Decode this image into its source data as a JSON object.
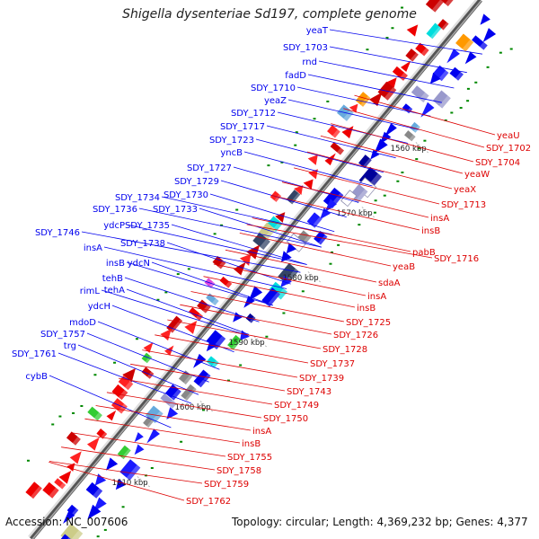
{
  "title": "Shigella dysenteriae Sd197, complete genome",
  "footer": {
    "accession": "Accession: NC_007606",
    "summary": "Topology: circular; Length: 4,369,232 bp; Genes: 4,377"
  },
  "colors": {
    "forward": "#0000ee",
    "reverse": "#dd0000",
    "ruler": "#999999",
    "tick": "#008800"
  },
  "scale_labels": [
    "1560 kbp",
    "1570 kbp",
    "1580 kbp",
    "1590 kbp",
    "1600 kbp",
    "1610 kbp"
  ],
  "forward_genes": [
    "yeaT",
    "SDY_1703",
    "rnd",
    "fadD",
    "SDY_1710",
    "yeaZ",
    "SDY_1712",
    "SDY_1717",
    "SDY_1723",
    "yncB",
    "SDY_1727",
    "SDY_1729",
    "SDY_1730",
    "SDY_1734",
    "SDY_1733",
    "SDY_1736",
    "ydcP",
    "SDY_1735",
    "SDY_1746",
    "SDY_1738",
    "insA",
    "insB",
    "ydcN",
    "tehB",
    "tehA",
    "rimL",
    "ydcH",
    "mdoD",
    "SDY_1757",
    "trg",
    "SDY_1761",
    "cybB"
  ],
  "reverse_genes": [
    "yeaU",
    "SDY_1702",
    "SDY_1704",
    "yeaW",
    "yeaX",
    "SDY_1713",
    "insA",
    "insB",
    "pabB",
    "SDY_1716",
    "yeaB",
    "sdaA",
    "insA",
    "insB",
    "SDY_1725",
    "SDY_1726",
    "SDY_1728",
    "SDY_1737",
    "SDY_1739",
    "SDY_1743",
    "SDY_1749",
    "SDY_1750",
    "insA",
    "insB",
    "SDY_1755",
    "SDY_1758",
    "SDY_1759",
    "SDY_1762"
  ]
}
